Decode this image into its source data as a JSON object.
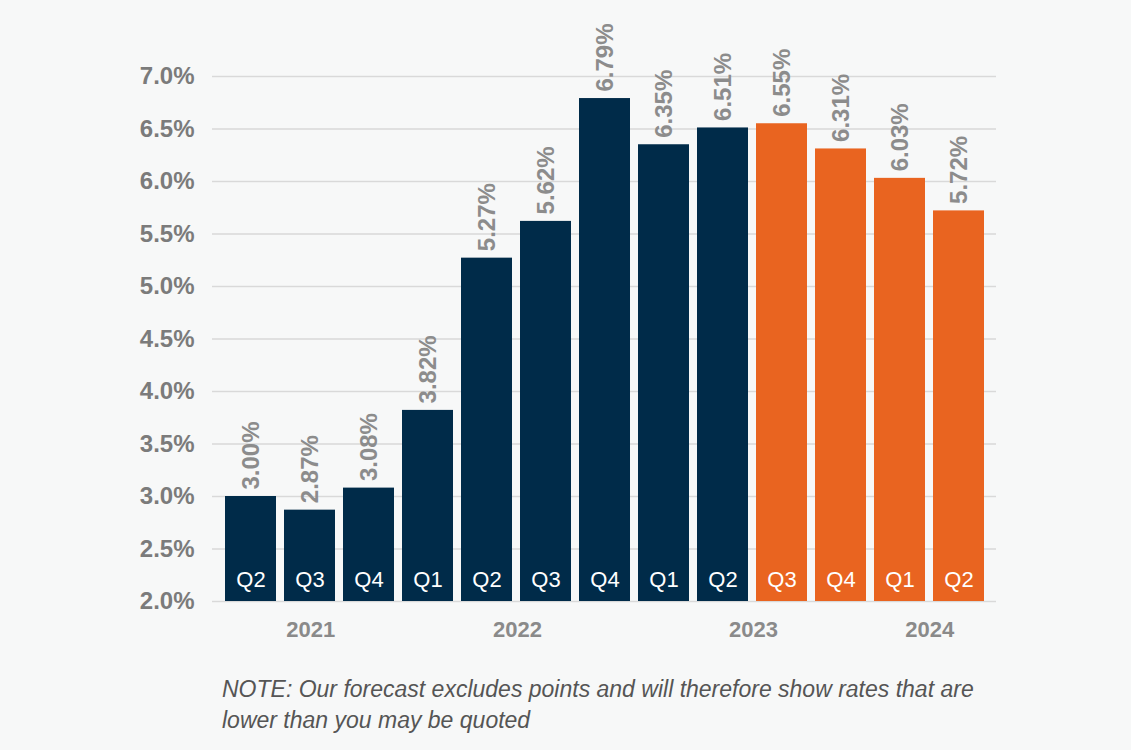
{
  "chart_data": {
    "type": "bar",
    "categories": [
      "Q2",
      "Q3",
      "Q4",
      "Q1",
      "Q2",
      "Q3",
      "Q4",
      "Q1",
      "Q2",
      "Q3",
      "Q4",
      "Q1",
      "Q2"
    ],
    "years": [
      "2021",
      "2021",
      "2021",
      "2022",
      "2022",
      "2022",
      "2022",
      "2023",
      "2023",
      "2023",
      "2023",
      "2024",
      "2024"
    ],
    "values": [
      3.0,
      2.87,
      3.08,
      3.82,
      5.27,
      5.62,
      6.79,
      6.35,
      6.51,
      6.55,
      6.31,
      6.03,
      5.72
    ],
    "value_labels": [
      "3.00%",
      "2.87%",
      "3.08%",
      "3.82%",
      "5.27%",
      "5.62%",
      "6.79%",
      "6.35%",
      "6.51%",
      "6.55%",
      "6.31%",
      "6.03%",
      "5.72%"
    ],
    "colors": [
      "#002b49",
      "#002b49",
      "#002b49",
      "#002b49",
      "#002b49",
      "#002b49",
      "#002b49",
      "#002b49",
      "#002b49",
      "#e96420",
      "#e96420",
      "#e96420",
      "#e96420"
    ],
    "ylim": [
      2,
      7
    ],
    "yticks": [
      {
        "value": 2,
        "label": "2.0%"
      },
      {
        "value": 2.5,
        "label": "2.5%"
      },
      {
        "value": 3,
        "label": "3.0%"
      },
      {
        "value": 3.5,
        "label": "3.5%"
      },
      {
        "value": 4,
        "label": "4.0%"
      },
      {
        "value": 4.5,
        "label": "4.5%"
      },
      {
        "value": 5,
        "label": "5.0%"
      },
      {
        "value": 5.5,
        "label": "5.5%"
      },
      {
        "value": 6,
        "label": "6.0%"
      },
      {
        "value": 6.5,
        "label": "6.5%"
      },
      {
        "value": 7,
        "label": "7.0%"
      }
    ],
    "grid": true,
    "data_labels": true,
    "note": "NOTE: Our forecast excludes points and will therefore show rates that are lower than you may be quoted"
  }
}
